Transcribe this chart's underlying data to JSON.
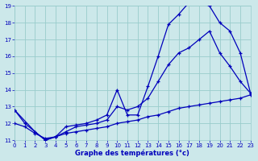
{
  "bg_color": "#cce8ea",
  "grid_color": "#99cccc",
  "line_color": "#0000bb",
  "axis_label_color": "#0000bb",
  "xlabel": "Graphe des températures (°c)",
  "xlim": [
    0,
    23
  ],
  "ylim": [
    11,
    19
  ],
  "yticks": [
    11,
    12,
    13,
    14,
    15,
    16,
    17,
    18,
    19
  ],
  "xticks": [
    0,
    1,
    2,
    3,
    4,
    5,
    6,
    7,
    8,
    9,
    10,
    11,
    12,
    13,
    14,
    15,
    16,
    17,
    18,
    19,
    20,
    21,
    22,
    23
  ],
  "curve1_x": [
    0,
    1,
    2,
    3,
    4,
    5,
    6,
    7,
    8,
    9,
    10,
    11,
    12,
    13,
    14,
    15,
    16,
    17,
    18,
    19,
    20,
    21,
    22,
    23
  ],
  "curve1_y": [
    12.8,
    12.0,
    11.5,
    11.0,
    11.2,
    11.8,
    11.9,
    12.0,
    12.2,
    12.5,
    14.0,
    12.5,
    12.5,
    14.2,
    16.0,
    17.9,
    18.5,
    19.2,
    19.2,
    19.0,
    18.0,
    17.5,
    16.2,
    13.8
  ],
  "curve2_x": [
    0,
    2,
    3,
    4,
    5,
    6,
    7,
    8,
    9,
    10,
    11,
    12,
    13,
    14,
    15,
    16,
    17,
    18,
    19,
    20,
    21,
    22,
    23
  ],
  "curve2_y": [
    12.8,
    11.5,
    11.0,
    11.2,
    11.5,
    11.8,
    11.9,
    12.0,
    12.2,
    13.0,
    12.8,
    13.0,
    13.5,
    14.5,
    15.5,
    16.2,
    16.5,
    17.0,
    17.5,
    16.2,
    15.4,
    14.5,
    13.8
  ],
  "curve3_x": [
    0,
    1,
    2,
    3,
    4,
    5,
    6,
    7,
    8,
    9,
    10,
    11,
    12,
    13,
    14,
    15,
    16,
    17,
    18,
    19,
    20,
    21,
    22,
    23
  ],
  "curve3_y": [
    12.0,
    11.8,
    11.4,
    11.1,
    11.2,
    11.4,
    11.5,
    11.6,
    11.7,
    11.8,
    12.0,
    12.1,
    12.2,
    12.4,
    12.5,
    12.7,
    12.9,
    13.0,
    13.1,
    13.2,
    13.3,
    13.4,
    13.5,
    13.7
  ]
}
